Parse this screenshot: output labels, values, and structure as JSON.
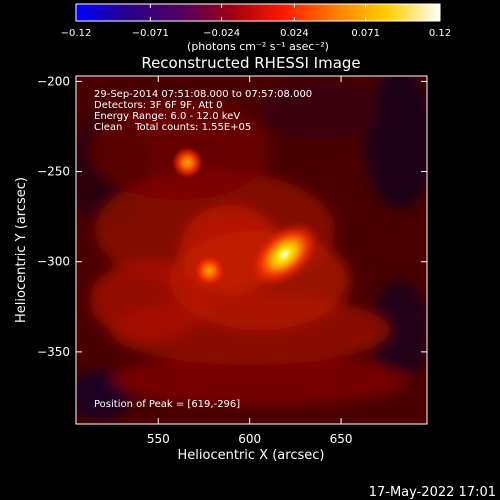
{
  "chart_data": {
    "type": "heatmap",
    "title": "Reconstructed RHESSI Image",
    "xlabel": "Heliocentric X (arcsec)",
    "ylabel": "Heliocentric Y (arcsec)",
    "xlim": [
      505,
      697
    ],
    "ylim": [
      -390,
      -197
    ],
    "xticks": [
      550,
      600,
      650
    ],
    "yticks": [
      -200,
      -250,
      -300,
      -350
    ],
    "xtick_labels": [
      "550",
      "600",
      "650"
    ],
    "ytick_labels": [
      "−200",
      "−250",
      "−300",
      "−350"
    ],
    "colorbar": {
      "range": [
        -0.12,
        0.12
      ],
      "ticks": [
        -0.12,
        -0.071,
        -0.024,
        0.024,
        0.071,
        0.12
      ],
      "tick_labels": [
        "−0.12",
        "−0.071",
        "−0.024",
        "0.024",
        "0.071",
        "0.12"
      ],
      "label": "(photons cm⁻² s⁻¹ asec⁻²)",
      "colors": [
        "#0000ff",
        "#2a008a",
        "#500060",
        "#a00010",
        "#ff1a00",
        "#ff7f00",
        "#ffd000",
        "#ffffff"
      ]
    },
    "sources": [
      {
        "x": 619,
        "y": -296,
        "peak": 0.12
      },
      {
        "x": 566,
        "y": -245,
        "peak": 0.055
      },
      {
        "x": 578,
        "y": -305,
        "peak": 0.05
      }
    ],
    "annotations": [
      "29-Sep-2014 07:51:08.000 to 07:57:08.000",
      "Detectors: 3F 6F 9F, Att 0",
      "Energy Range: 6.0 - 12.0 keV",
      "Clean    Total counts: 1.55E+05",
      "Position of Peak = [619,-296]"
    ]
  },
  "timestamp": "17-May-2022 17:01"
}
